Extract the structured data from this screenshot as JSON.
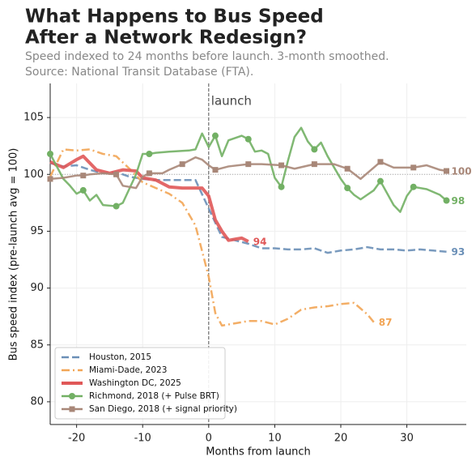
{
  "chart_data": {
    "type": "line",
    "title": [
      "What Happens to Bus Speed",
      "After a Network Redesign?"
    ],
    "subtitle": [
      "Speed indexed to 24 months before launch. 3-month smoothed.",
      "Source: National Transit Database (FTA)."
    ],
    "x_label": "Months from launch",
    "y_label": "Bus speed index (pre-launch avg = 100)",
    "xlim": [
      -24,
      39
    ],
    "ylim": [
      78,
      108
    ],
    "xticks": [
      -20,
      -10,
      0,
      10,
      20,
      30
    ],
    "yticks": [
      80,
      85,
      90,
      95,
      100,
      105
    ],
    "grid": true,
    "reference_line": 100,
    "annotation": {
      "x": 0,
      "text": "launch"
    },
    "legend": "lower left",
    "series": [
      {
        "name": "Houston, 2015",
        "color": "#6a8fb7",
        "dash": "dashed",
        "marker": null,
        "x": [
          -24,
          -22,
          -20,
          -18,
          -16,
          -14,
          -12,
          -10,
          -8,
          -6,
          -4,
          -2,
          0,
          2,
          4,
          6,
          8,
          10,
          12,
          14,
          16,
          18,
          20,
          22,
          24,
          26,
          28,
          30,
          32,
          34,
          36
        ],
        "values": [
          101,
          100.7,
          100.8,
          100.4,
          100.1,
          100.2,
          99.8,
          99.6,
          99.5,
          99.5,
          99.5,
          99.5,
          97,
          94.5,
          94.2,
          93.9,
          93.5,
          93.5,
          93.4,
          93.4,
          93.5,
          93.1,
          93.3,
          93.4,
          93.6,
          93.4,
          93.4,
          93.3,
          93.4,
          93.3,
          93.2
        ],
        "end_label": "93"
      },
      {
        "name": "Miami-Dade, 2023",
        "color": "#f2a555",
        "dash": "dashdot",
        "marker": null,
        "x": [
          -24,
          -22,
          -20,
          -18,
          -16,
          -14,
          -12,
          -10,
          -8,
          -6,
          -4,
          -2,
          0,
          1,
          2,
          4,
          6,
          8,
          10,
          12,
          14,
          16,
          18,
          20,
          22,
          24,
          25
        ],
        "values": [
          99.8,
          102.2,
          102.1,
          102.2,
          101.8,
          101.6,
          100.5,
          99.3,
          98.8,
          98.3,
          97.5,
          95.5,
          91,
          87.8,
          86.7,
          86.9,
          87.1,
          87.1,
          86.8,
          87.3,
          88.1,
          88.3,
          88.4,
          88.6,
          88.7,
          87.7,
          87.0
        ],
        "end_label": "87"
      },
      {
        "name": "Washington DC, 2025",
        "color": "#e05858",
        "dash": "solid",
        "marker": null,
        "width": 4,
        "x": [
          -24,
          -22,
          -20,
          -19,
          -17,
          -15,
          -13,
          -11,
          -10,
          -8,
          -6,
          -4,
          -1,
          0,
          1,
          2,
          3,
          4,
          5,
          6
        ],
        "values": [
          101.1,
          100.6,
          101.3,
          101.6,
          100.4,
          100.1,
          100.4,
          100.3,
          99.7,
          99.5,
          98.9,
          98.8,
          98.8,
          98.1,
          96,
          95,
          94.2,
          94.3,
          94.4,
          94.1
        ],
        "end_label": "94"
      },
      {
        "name": "Richmond, 2018 (+ Pulse BRT)",
        "color": "#72b064",
        "dash": "solid",
        "marker": "circle",
        "marker_every": 5,
        "x": [
          -24,
          -22,
          -21,
          -20,
          -19,
          -18,
          -17,
          -16,
          -14,
          -13,
          -11,
          -10,
          -9,
          -8,
          -6,
          -3,
          -2,
          -1,
          0,
          1,
          2,
          3,
          5,
          6,
          7,
          8,
          9,
          10,
          11,
          12,
          13,
          14,
          15,
          16,
          17,
          18,
          20,
          21,
          22,
          23,
          24,
          25,
          26,
          28,
          29,
          30,
          31,
          33,
          35,
          36
        ],
        "values": [
          101.8,
          99.6,
          99,
          98.3,
          98.6,
          97.7,
          98.2,
          97.3,
          97.2,
          97.5,
          100,
          101.8,
          101.8,
          101.9,
          102,
          102.1,
          102.2,
          103.6,
          102.4,
          103.4,
          101.6,
          103,
          103.4,
          103.1,
          102,
          102.1,
          101.8,
          99.7,
          98.9,
          101.2,
          103.3,
          104.1,
          102.9,
          102.2,
          102.8,
          101.6,
          99.6,
          98.8,
          98.2,
          97.8,
          98.2,
          98.6,
          99.4,
          97.3,
          96.7,
          98.1,
          98.9,
          98.7,
          98.2,
          97.7
        ],
        "end_label": "98"
      },
      {
        "name": "San Diego, 2018 (+ signal priority)",
        "color": "#a88778",
        "dash": "solid",
        "marker": "square",
        "marker_every": 5,
        "x": [
          -24,
          -22,
          -20,
          -19,
          -18,
          -16,
          -14,
          -13,
          -11,
          -10,
          -9,
          -7,
          -6,
          -4,
          -2,
          -1,
          0,
          1,
          3,
          6,
          8,
          11,
          13,
          16,
          19,
          21,
          23,
          24,
          26,
          28,
          31,
          33,
          35,
          36
        ],
        "values": [
          99.6,
          99.7,
          99.9,
          99.9,
          100,
          100.1,
          100,
          99,
          98.8,
          99.8,
          100.1,
          100.1,
          100.4,
          100.9,
          101.5,
          101.3,
          100.8,
          100.4,
          100.7,
          100.9,
          100.9,
          100.8,
          100.5,
          100.9,
          100.9,
          100.5,
          99.6,
          100.1,
          101.1,
          100.6,
          100.6,
          100.8,
          100.4,
          100.3
        ],
        "end_label": "100"
      }
    ]
  }
}
